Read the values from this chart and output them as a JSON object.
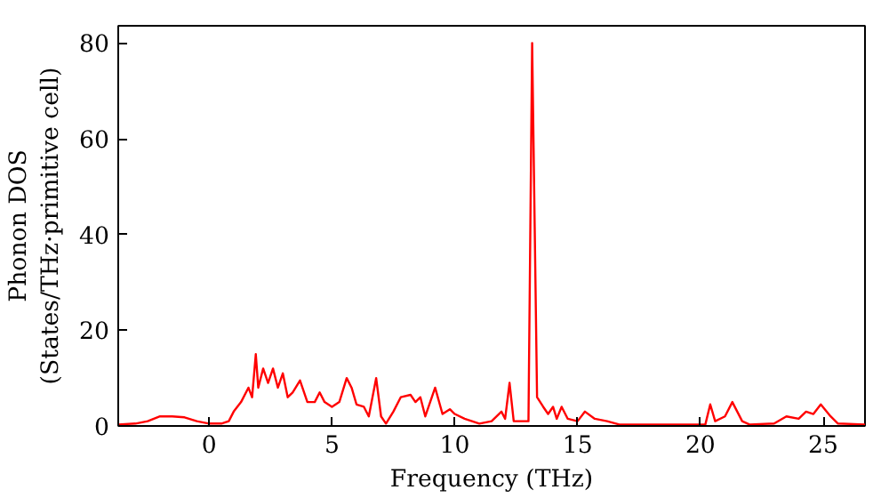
{
  "chart_data": {
    "type": "line",
    "xlabel": "Frequency (THz)",
    "ylabel": "Phonon DOS\n(States/THz·primitive cell)",
    "xlim": [
      -3.7,
      26.7
    ],
    "ylim": [
      0,
      83.6
    ],
    "xticks": [
      0,
      5,
      10,
      15,
      20,
      25
    ],
    "yticks": [
      0,
      20,
      40,
      60,
      80
    ],
    "grid": false,
    "series": [
      {
        "color": "#ff0000",
        "x": [
          -3.7,
          -3,
          -2.5,
          -2,
          -1.5,
          -1,
          -0.5,
          0,
          0.5,
          0.8,
          1.0,
          1.3,
          1.6,
          1.75,
          1.9,
          2.0,
          2.2,
          2.4,
          2.6,
          2.8,
          3.0,
          3.2,
          3.4,
          3.7,
          4.0,
          4.3,
          4.5,
          4.7,
          5.0,
          5.3,
          5.6,
          5.8,
          6.0,
          6.3,
          6.5,
          6.8,
          7.0,
          7.2,
          7.5,
          7.8,
          8.2,
          8.4,
          8.6,
          8.8,
          9.2,
          9.5,
          9.8,
          10.0,
          10.4,
          11.0,
          11.5,
          11.9,
          12.05,
          12.23,
          12.4,
          13.0,
          13.15,
          13.35,
          13.6,
          13.8,
          14.0,
          14.15,
          14.35,
          14.6,
          15.0,
          15.3,
          15.7,
          16.2,
          16.7,
          20.2,
          20.4,
          20.6,
          21.0,
          21.3,
          21.7,
          22.0,
          23.0,
          23.5,
          24.0,
          24.3,
          24.6,
          24.9,
          25.3,
          25.6,
          26.7
        ],
        "values": [
          0.3,
          0.5,
          1,
          2,
          2,
          1.8,
          1,
          0.5,
          0.5,
          1,
          3,
          5,
          8,
          6,
          15,
          8,
          12,
          9,
          12,
          8,
          11,
          6,
          7,
          9.5,
          5,
          5,
          7,
          5,
          4,
          5,
          10,
          8,
          4.5,
          4,
          2,
          10,
          2,
          0.5,
          3,
          6,
          6.5,
          5,
          6,
          2,
          8,
          2.5,
          3.5,
          2.5,
          1.5,
          0.5,
          1,
          3,
          1.5,
          9,
          1,
          1,
          80,
          6,
          4,
          2.5,
          4,
          1.5,
          4,
          1.5,
          1,
          3,
          1.5,
          1,
          0.3,
          0.3,
          4.5,
          1,
          2,
          5,
          1,
          0.3,
          0.5,
          2,
          1.5,
          3,
          2.5,
          4.5,
          2,
          0.5,
          0.3
        ]
      }
    ]
  }
}
